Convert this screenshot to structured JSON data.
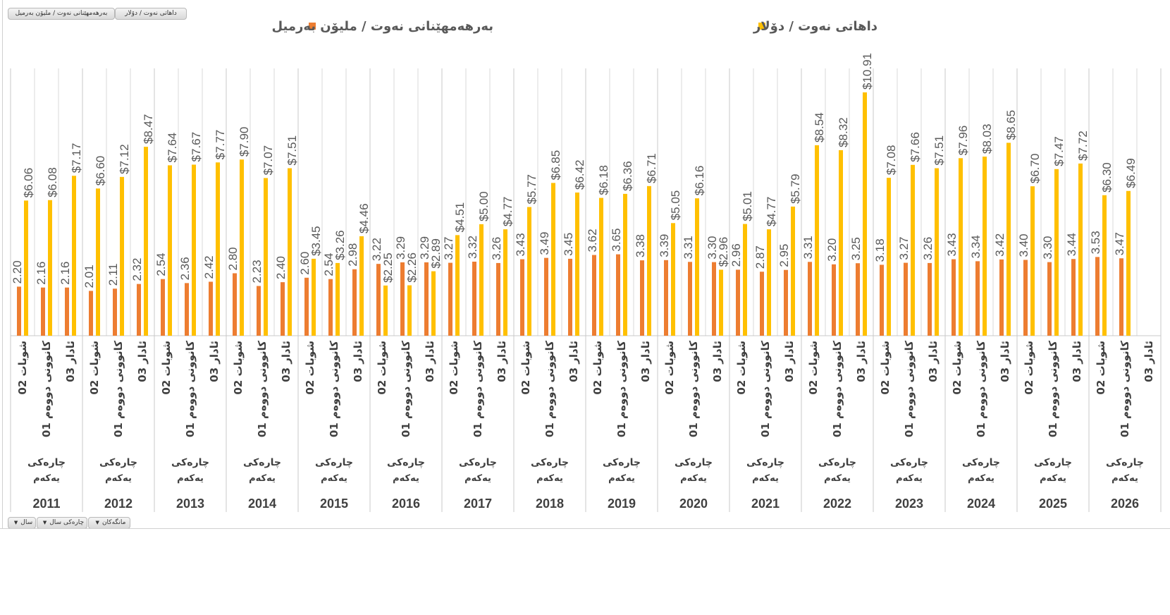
{
  "field_buttons_top": [
    "داهاتی نەوت / دۆلار",
    "بەرهەمهێنانی نەوت / ملیۆن بەرمیل"
  ],
  "field_buttons_bottom": [
    "سال",
    "چارەکی سال",
    "مانگەکان"
  ],
  "colors": {
    "production": "#ED7D31",
    "revenue": "#FFC000",
    "text": "#595959",
    "axis_text": "#404040",
    "grid": "#d9d9d9"
  },
  "chart_data": {
    "type": "bar",
    "legend_placement": "top",
    "grid": "vertical category separators",
    "ylim": [
      0,
      11
    ],
    "years": [
      "2011",
      "2012",
      "2013",
      "2014",
      "2015",
      "2016",
      "2017",
      "2018",
      "2019",
      "2020",
      "2021",
      "2022",
      "2023",
      "2024",
      "2025",
      "2026"
    ],
    "quarter_label": [
      "چارەکی",
      "یەکەم"
    ],
    "months": [
      "02 شوبات",
      "01 کانوونی دووەم",
      "03 ئادار"
    ],
    "series": [
      {
        "name": "بەرهەمهێنانی نەوت / ملیۆن بەرمیل",
        "color": "#ED7D31",
        "label_prefix": "",
        "values": [
          2.2,
          2.16,
          2.16,
          2.01,
          2.11,
          2.32,
          2.54,
          2.36,
          2.42,
          2.8,
          2.23,
          2.4,
          2.6,
          2.54,
          2.98,
          3.22,
          3.29,
          3.29,
          3.27,
          3.32,
          3.26,
          3.43,
          3.49,
          3.45,
          3.62,
          3.65,
          3.38,
          3.39,
          3.31,
          3.3,
          2.96,
          2.87,
          2.95,
          3.31,
          3.2,
          3.25,
          3.18,
          3.27,
          3.26,
          3.43,
          3.34,
          3.42,
          3.4,
          3.3,
          3.44,
          3.53,
          3.47,
          null
        ]
      },
      {
        "name": "داهاتی نەوت / دۆلار",
        "color": "#FFC000",
        "label_prefix": "$",
        "values": [
          6.06,
          6.08,
          7.17,
          6.6,
          7.12,
          8.47,
          7.64,
          7.67,
          7.77,
          7.9,
          7.07,
          7.51,
          3.45,
          3.26,
          4.46,
          2.25,
          2.26,
          2.89,
          4.51,
          5.0,
          4.77,
          5.77,
          6.85,
          6.42,
          6.18,
          6.36,
          6.71,
          5.05,
          6.16,
          2.96,
          5.01,
          4.77,
          5.79,
          8.54,
          8.32,
          10.91,
          7.08,
          7.66,
          7.51,
          7.96,
          8.03,
          8.65,
          6.7,
          7.47,
          7.72,
          6.3,
          6.49,
          null
        ]
      }
    ]
  }
}
